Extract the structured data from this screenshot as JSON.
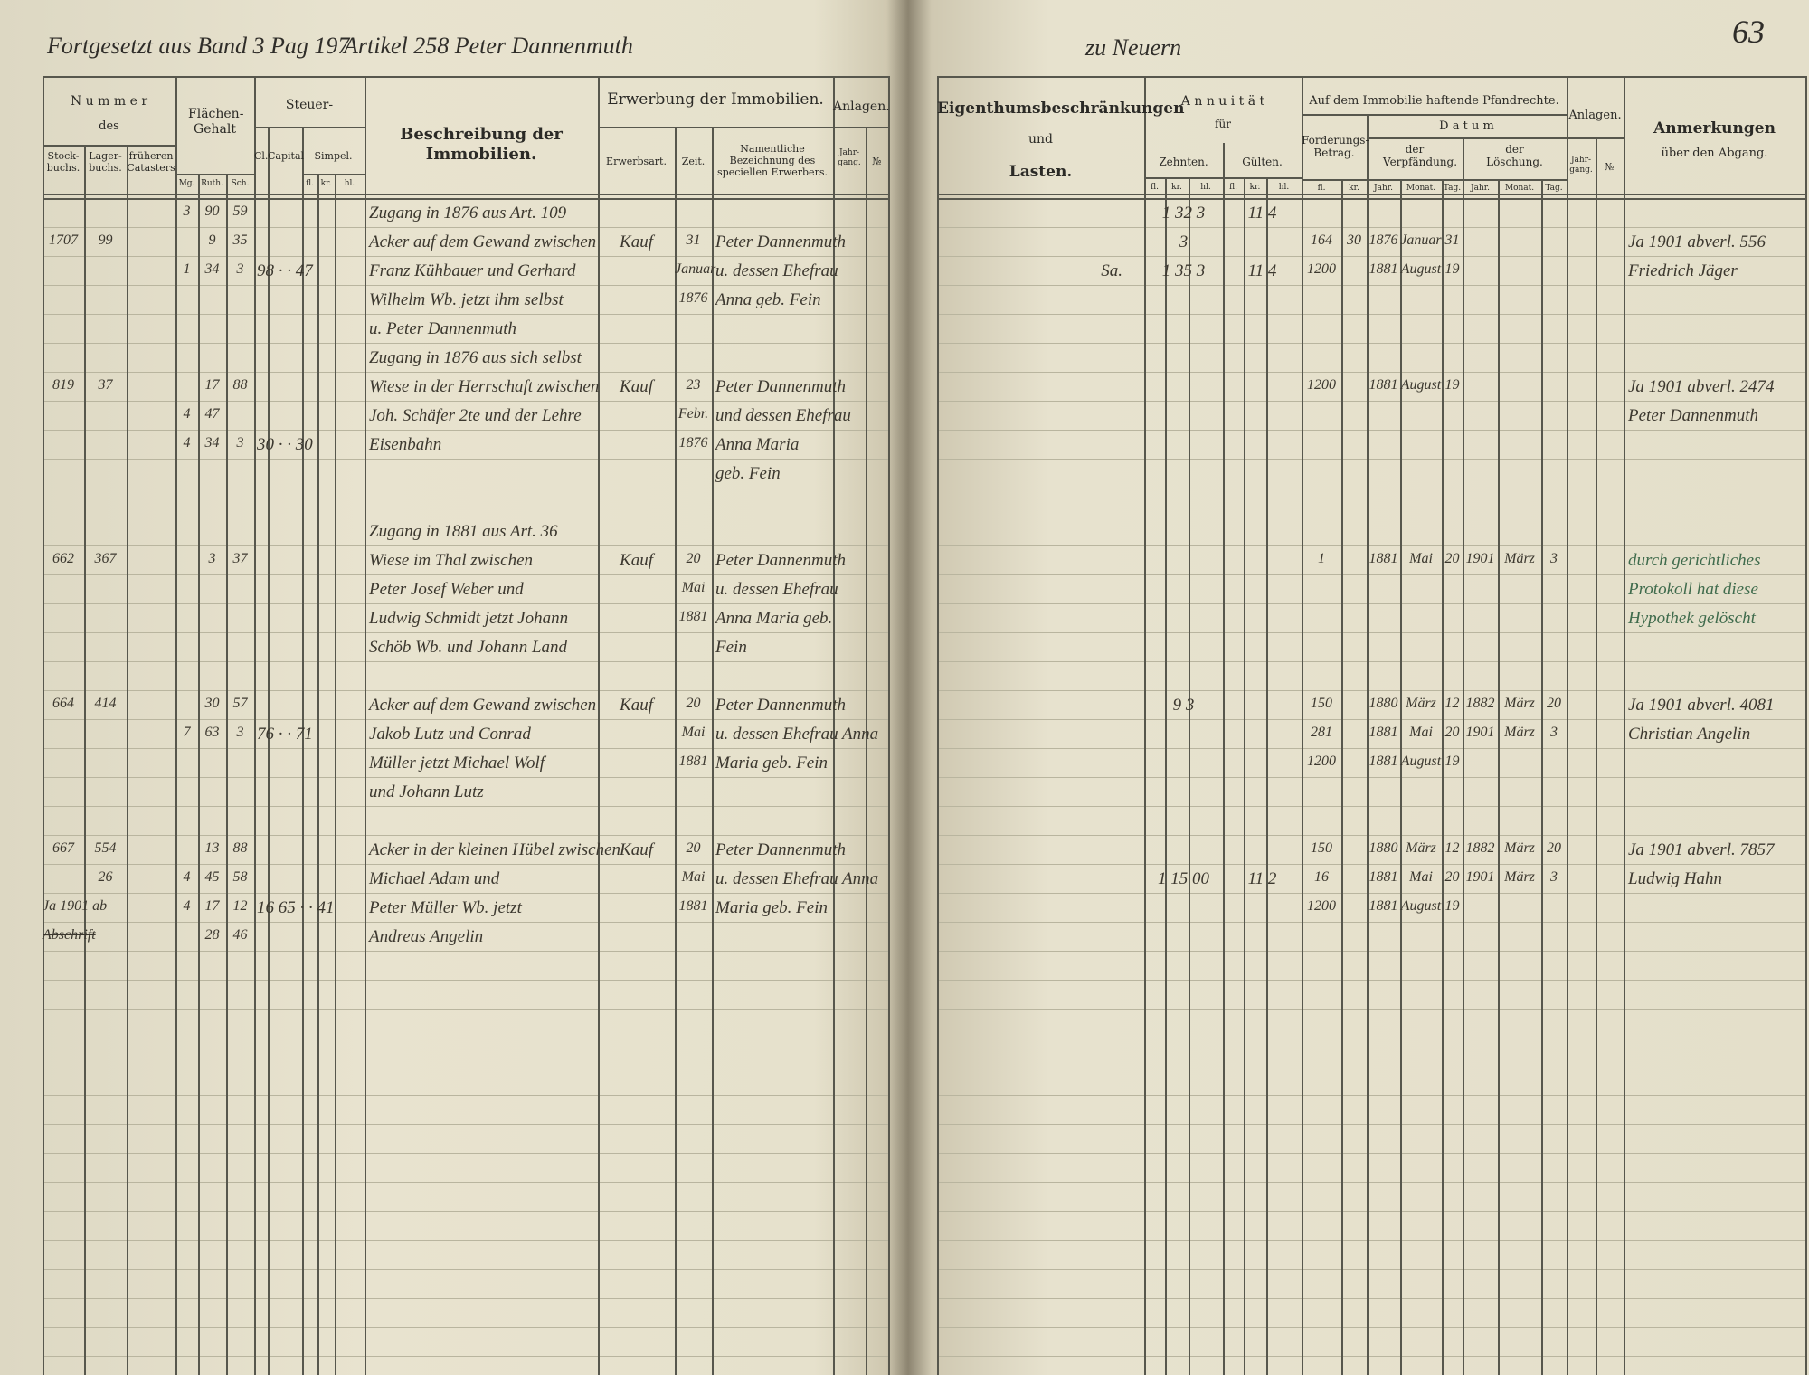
{
  "top_line": {
    "left": "Fortgesetzt aus Band 3 Pag 197",
    "article": "Artikel 258 Peter Dannenmuth",
    "right": "zu Neuern",
    "page_number": "63"
  },
  "left_page": {
    "headers": {
      "nummer": "N u m m e r",
      "des": "des",
      "stockbuchs": "Stock-buchs.",
      "lagerbuchs": "Lager-buchs.",
      "frueheren": "früheren Catasters",
      "flaechen": "Flächen-Gehalt",
      "mg": "Mg.",
      "ruth": "Ruth.",
      "sch": "Sch.",
      "steuer": "Steuer-",
      "cl": "Cl.",
      "capital": "Capital",
      "simpel": "Simpel.",
      "steuer_units": [
        "fl.",
        "kr.",
        "hl."
      ],
      "beschreibung": "Beschreibung der Immobilien.",
      "erwerbung": "Erwerbung der Immobilien.",
      "erwerbsart": "Erwerbsart.",
      "zeit": "Zeit.",
      "namentliche": "Namentliche Bezeichnung des speciellen Erwerbers.",
      "anlagen": "Anlagen.",
      "jahrgang": "Jahr-gang.",
      "nr": "№"
    },
    "entries": [
      {
        "mg": "3",
        "ruth": "90",
        "sch": "59",
        "desc": "Zugang in 1876 aus Art. 109"
      },
      {
        "stock": "1707",
        "lager": "99",
        "ruth": "9",
        "sch": "35",
        "desc": "Acker auf dem Gewand zwischen",
        "art": "Kauf",
        "zeit": "31",
        "name": "Peter Dannenmuth"
      },
      {
        "mg": "1",
        "ruth": "34",
        "sch": "3",
        "steuer": "98 · · 47",
        "desc": "Franz Kühbauer und Gerhard",
        "zeit": "Januar",
        "name": "u. dessen Ehefrau"
      },
      {
        "desc": "Wilhelm Wb. jetzt ihm selbst",
        "zeit": "1876",
        "name": "Anna geb. Fein"
      },
      {
        "desc": "u. Peter Dannenmuth"
      },
      {
        "desc": "Zugang in 1876 aus sich selbst"
      },
      {
        "stock": "819",
        "lager": "37",
        "ruth": "17",
        "sch": "88",
        "desc": "Wiese in der Herrschaft zwischen",
        "art": "Kauf",
        "zeit": "23",
        "name": "Peter Dannenmuth"
      },
      {
        "mg": "4",
        "ruth": "47",
        "desc": "Joh. Schäfer 2te und der Lehre",
        "zeit": "Febr.",
        "name": "und dessen Ehefrau"
      },
      {
        "mg": "4",
        "ruth": "34",
        "sch": "3",
        "steuer": "30 · · 30",
        "desc": "Eisenbahn",
        "zeit": "1876",
        "name": "Anna Maria"
      },
      {
        "name": "geb. Fein"
      },
      {
        "desc": "Zugang in 1881 aus Art. 36"
      },
      {
        "stock": "662",
        "lager": "367",
        "ruth": "3",
        "sch": "37",
        "desc": "Wiese im Thal zwischen",
        "art": "Kauf",
        "zeit": "20",
        "name": "Peter Dannenmuth"
      },
      {
        "desc": "Peter Josef Weber und",
        "zeit": "Mai",
        "name": "u. dessen Ehefrau"
      },
      {
        "desc": "Ludwig Schmidt jetzt Johann",
        "zeit": "1881",
        "name": "Anna Maria geb."
      },
      {
        "desc": "Schöb Wb. und Johann Land",
        "name": "Fein"
      },
      {
        "stock": "664",
        "lager": "414",
        "ruth": "30",
        "sch": "57",
        "desc": "Acker auf dem Gewand zwischen",
        "art": "Kauf",
        "zeit": "20",
        "name": "Peter Dannenmuth"
      },
      {
        "mg": "7",
        "ruth": "63",
        "sch": "3",
        "steuer": "76 · · 71",
        "desc": "Jakob Lutz und Conrad",
        "zeit": "Mai",
        "name": "u. dessen Ehefrau Anna"
      },
      {
        "desc": "Müller jetzt Michael Wolf",
        "zeit": "1881",
        "name": "Maria geb. Fein"
      },
      {
        "desc": "und Johann Lutz"
      },
      {
        "stock": "667",
        "lager": "554",
        "ruth": "13",
        "sch": "88",
        "desc": "Acker in der kleinen Hübel zwischen",
        "art": "Kauf",
        "zeit": "20",
        "name": "Peter Dannenmuth"
      },
      {
        "lager": "26",
        "mg": "4",
        "ruth": "45",
        "sch": "58",
        "desc": "Michael Adam und",
        "zeit": "Mai",
        "name": "u. dessen Ehefrau Anna"
      },
      {
        "stock": "Ja 1901 ab",
        "mg": "4",
        "ruth": "17",
        "sch": "12",
        "steuer": "16 65 · · 41",
        "desc": "Peter Müller Wb. jetzt",
        "zeit": "1881",
        "name": "Maria geb. Fein"
      },
      {
        "stock": "Abschrift",
        "ruth": "28",
        "sch": "46",
        "desc": "Andreas Angelin"
      }
    ]
  },
  "right_page": {
    "headers": {
      "eigenthum": "Eigenthumsbeschränkungen",
      "und": "und",
      "lasten": "Lasten.",
      "annuitaet": "A n n u i t ä t",
      "fuer": "für",
      "zehnten": "Zehnten.",
      "guelten": "Gülten.",
      "zehnten_units": [
        "fl.",
        "kr.",
        "hl."
      ],
      "guelten_units": [
        "fl.",
        "kr.",
        "hl."
      ],
      "pfand": "Auf dem Immobilie haftende Pfandrechte.",
      "forderung": "Forderungs-Betrag.",
      "forderung_units": [
        "fl.",
        "kr."
      ],
      "datum": "D a t u m",
      "verpfaendung": "der Verpfändung.",
      "loeschung": "der Löschung.",
      "verpfaendung_units": [
        "Jahr.",
        "Monat.",
        "Tag."
      ],
      "loeschung_units": [
        "Jahr.",
        "Monat.",
        "Tag."
      ],
      "anlagen": "Anlagen.",
      "jahrgang": "Jahr-gang.",
      "nr": "№",
      "anmerkungen": "Anmerkungen",
      "ueber": "über den Abgang."
    },
    "entries": [
      {
        "zehnten": "1 32 3",
        "guelten": "11 4"
      },
      {
        "zehnten": "3",
        "ford_fl": "164",
        "ford_kr": "30",
        "v_jahr": "1876",
        "v_monat": "Januar",
        "v_tag": "31",
        "anm": "Ja 1901 abverl. 556"
      },
      {
        "eig": "Sa.",
        "zehnten": "1 35 3",
        "guelten": "11 4",
        "ford_fl": "1200",
        "v_jahr": "1881",
        "v_monat": "August",
        "v_tag": "19",
        "anm": "Friedrich Jäger"
      },
      {
        "ford_fl": "1200",
        "v_jahr": "1881",
        "v_monat": "August",
        "v_tag": "19",
        "anm": "Ja 1901 abverl. 2474"
      },
      {
        "anm": "Peter Dannenmuth"
      },
      {
        "ford_fl": "1",
        "v_jahr": "1881",
        "v_monat": "Mai",
        "v_tag": "20",
        "l_jahr": "1901",
        "l_monat": "März",
        "l_tag": "3",
        "anm": "durch gerichtliches"
      },
      {
        "anm": "Protokoll hat diese"
      },
      {
        "anm": "Hypothek gelöscht"
      },
      {
        "zehnten": "9 3",
        "ford_fl": "150",
        "v_jahr": "1880",
        "v_monat": "März",
        "v_tag": "12",
        "l_jahr": "1882",
        "l_monat": "März",
        "l_tag": "20",
        "anm": "Ja 1901 abverl. 4081"
      },
      {
        "ford_fl": "281",
        "v_jahr": "1881",
        "v_monat": "Mai",
        "v_tag": "20",
        "l_jahr": "1901",
        "l_monat": "März",
        "l_tag": "3",
        "anm": "Christian Angelin"
      },
      {
        "ford_fl": "1200",
        "v_jahr": "1881",
        "v_monat": "August",
        "v_tag": "19"
      },
      {
        "ford_fl": "150",
        "v_jahr": "1880",
        "v_monat": "März",
        "v_tag": "12",
        "l_jahr": "1882",
        "l_monat": "März",
        "l_tag": "20",
        "anm": "Ja 1901 abverl. 7857"
      },
      {
        "zehnten": "1 15 00",
        "guelten": "11 2",
        "ford_fl": "16",
        "v_jahr": "1881",
        "v_monat": "Mai",
        "v_tag": "20",
        "l_jahr": "1901",
        "l_monat": "März",
        "l_tag": "3",
        "anm": "Ludwig Hahn"
      },
      {
        "ford_fl": "1200",
        "v_jahr": "1881",
        "v_monat": "August",
        "v_tag": "19"
      }
    ]
  }
}
